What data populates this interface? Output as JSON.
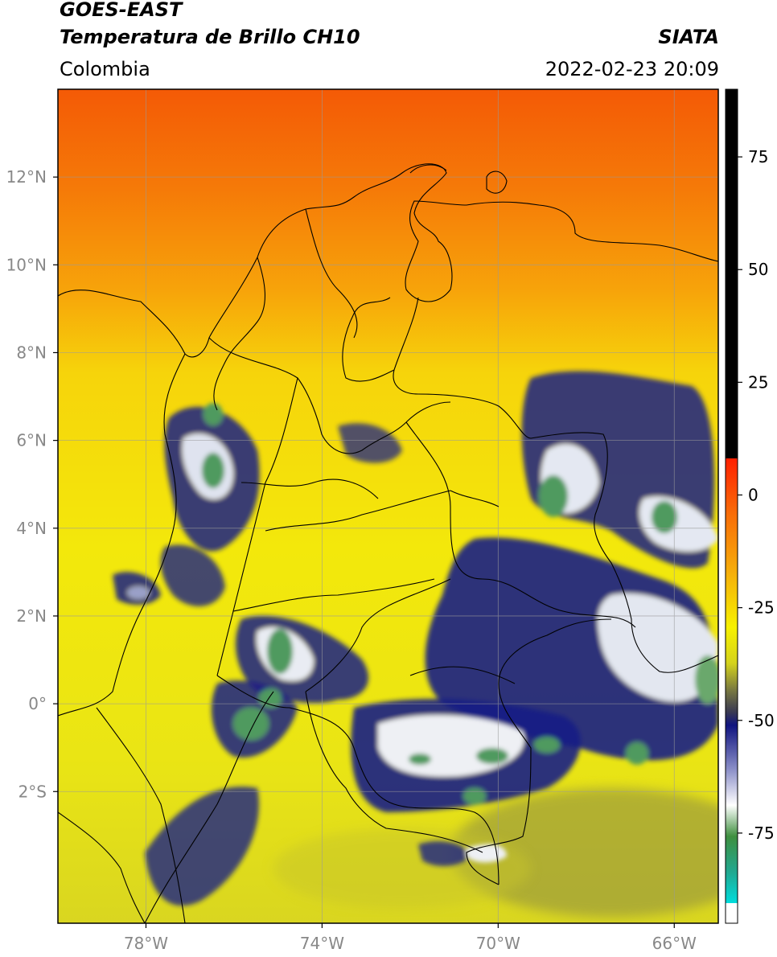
{
  "header": {
    "satellite": "GOES-EAST",
    "product": "Temperatura de Brillo CH10",
    "region": "Colombia",
    "brand": "SIATA",
    "datetime": "2022-02-23 20:09"
  },
  "axes": {
    "lat_ticks": [
      {
        "label": "12°N",
        "value": 12
      },
      {
        "label": "10°N",
        "value": 10
      },
      {
        "label": "8°N",
        "value": 8
      },
      {
        "label": "6°N",
        "value": 6
      },
      {
        "label": "4°N",
        "value": 4
      },
      {
        "label": "2°N",
        "value": 2
      },
      {
        "label": "0°",
        "value": 0
      },
      {
        "label": "2°S",
        "value": -2
      }
    ],
    "lon_ticks": [
      {
        "label": "78°W",
        "value": -78
      },
      {
        "label": "74°W",
        "value": -74
      },
      {
        "label": "70°W",
        "value": -70
      },
      {
        "label": "66°W",
        "value": -66
      }
    ],
    "lon_range": [
      -80,
      -65
    ],
    "lat_range": [
      -5,
      14
    ]
  },
  "colorbar": {
    "range": [
      -95,
      90
    ],
    "ticks": [
      {
        "label": "75",
        "value": 75
      },
      {
        "label": "50",
        "value": 50
      },
      {
        "label": "25",
        "value": 25
      },
      {
        "label": "0",
        "value": 0
      },
      {
        "label": "-25",
        "value": -25
      },
      {
        "label": "-50",
        "value": -50
      },
      {
        "label": "-75",
        "value": -75
      }
    ]
  },
  "colors": {
    "hot_orange": "#f26b0c",
    "yellow": "#f2e40a",
    "navy": "#101480",
    "green": "#3e9e5a",
    "cbar_black": "#000000",
    "cbar_red": "#ff2000",
    "cbar_cyan": "#00dcdc"
  }
}
